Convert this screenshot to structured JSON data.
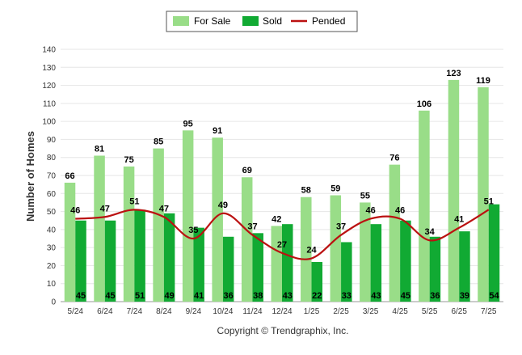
{
  "chart_data": {
    "type": "bar",
    "categories": [
      "5/24",
      "6/24",
      "7/24",
      "8/24",
      "9/24",
      "10/24",
      "11/24",
      "12/24",
      "1/25",
      "2/25",
      "3/25",
      "4/25",
      "5/25",
      "6/25",
      "7/25"
    ],
    "series": [
      {
        "name": "For Sale",
        "type": "bar",
        "color": "#99dd88",
        "values": [
          66,
          81,
          75,
          85,
          95,
          91,
          69,
          42,
          58,
          59,
          55,
          76,
          106,
          123,
          119
        ]
      },
      {
        "name": "Sold",
        "type": "bar",
        "color": "#11aa33",
        "values": [
          45,
          45,
          51,
          49,
          41,
          36,
          38,
          43,
          22,
          33,
          43,
          45,
          36,
          39,
          54
        ]
      },
      {
        "name": "Pended",
        "type": "line",
        "color": "#bb1111",
        "values": [
          46,
          47,
          51,
          47,
          35,
          49,
          37,
          27,
          24,
          37,
          46,
          46,
          34,
          41,
          51
        ]
      }
    ],
    "ylabel": "Number of Homes",
    "xlabel": "",
    "ylim": [
      0,
      140
    ],
    "yticks": [
      0,
      10,
      20,
      30,
      40,
      50,
      60,
      70,
      80,
      90,
      100,
      110,
      120,
      130,
      140
    ],
    "grid": true,
    "legend_position": "top-center"
  },
  "credit": "Copyright © Trendgraphix, Inc."
}
